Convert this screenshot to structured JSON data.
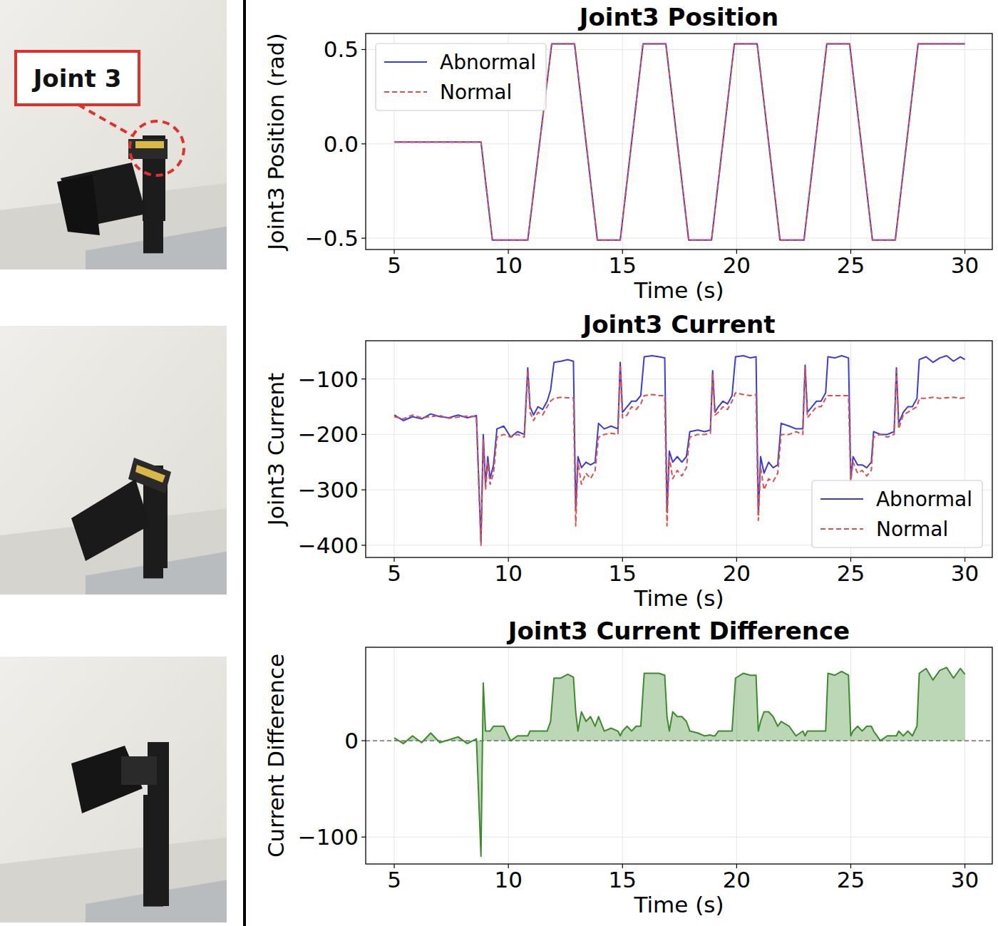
{
  "photo_panel": {
    "callout": "Joint 3"
  },
  "chart_data": [
    {
      "type": "line",
      "title": "Joint3 Position",
      "x_label": "Time (s)",
      "y_label": "Joint3 Position (rad)",
      "xlim": [
        3.75,
        31.2
      ],
      "ylim": [
        -0.56,
        0.585
      ],
      "xticks": [
        5,
        10,
        15,
        20,
        25,
        30
      ],
      "yticks": [
        {
          "value": -0.5,
          "label": "−0.5"
        },
        {
          "value": 0,
          "label": "0.0"
        },
        {
          "value": 0.5,
          "label": "0.5"
        }
      ],
      "grid": true,
      "legend": "upper left",
      "x": [
        5,
        8.8,
        9.3,
        10.85,
        11.9,
        12.9,
        13.9,
        14.9,
        15.9,
        16.9,
        17.9,
        18.9,
        19.9,
        20.9,
        21.9,
        22.95,
        23.95,
        24.95,
        25.95,
        26.95,
        27.95,
        30
      ],
      "series": [
        {
          "name": "Abnormal",
          "color": "#3b3bdc",
          "line_style": "solid",
          "values": [
            0.01,
            0.01,
            -0.51,
            -0.51,
            0.53,
            0.53,
            -0.51,
            -0.51,
            0.53,
            0.53,
            -0.51,
            -0.51,
            0.53,
            0.53,
            -0.51,
            -0.51,
            0.53,
            0.53,
            -0.51,
            -0.51,
            0.53,
            0.53
          ]
        },
        {
          "name": "Normal",
          "color": "#e0504a",
          "line_style": "dashed",
          "values": [
            0.01,
            0.01,
            -0.51,
            -0.51,
            0.53,
            0.53,
            -0.51,
            -0.51,
            0.53,
            0.53,
            -0.51,
            -0.51,
            0.53,
            0.53,
            -0.51,
            -0.51,
            0.53,
            0.53,
            -0.51,
            -0.51,
            0.53,
            0.53
          ]
        }
      ]
    },
    {
      "type": "line",
      "title": "Joint3 Current",
      "x_label": "Time (s)",
      "y_label": "Joint3 Current",
      "xlim": [
        3.75,
        31.2
      ],
      "ylim": [
        -422,
        -31
      ],
      "xticks": [
        5,
        10,
        15,
        20,
        25,
        30
      ],
      "yticks": [
        {
          "value": -400,
          "label": "−400"
        },
        {
          "value": -300,
          "label": "−300"
        },
        {
          "value": -200,
          "label": "−200"
        },
        {
          "value": -100,
          "label": "−100"
        }
      ],
      "grid": true,
      "legend": "lower right",
      "x": [
        5.0,
        5.4,
        5.8,
        6.2,
        6.6,
        7.0,
        7.4,
        7.8,
        8.2,
        8.6,
        8.8,
        8.9,
        9.0,
        9.1,
        9.2,
        9.35,
        9.5,
        9.8,
        10.1,
        10.4,
        10.7,
        10.85,
        10.95,
        11.1,
        11.3,
        11.5,
        11.7,
        11.85,
        12.0,
        12.3,
        12.6,
        12.85,
        12.95,
        13.05,
        13.2,
        13.4,
        13.6,
        13.8,
        13.95,
        14.2,
        14.5,
        14.8,
        14.9,
        15.0,
        15.2,
        15.4,
        15.6,
        15.8,
        15.95,
        16.3,
        16.6,
        16.85,
        16.95,
        17.05,
        17.2,
        17.4,
        17.6,
        17.8,
        17.95,
        18.3,
        18.6,
        18.85,
        18.95,
        19.05,
        19.2,
        19.4,
        19.6,
        19.8,
        19.95,
        20.3,
        20.6,
        20.85,
        20.95,
        21.05,
        21.2,
        21.4,
        21.6,
        21.8,
        21.95,
        22.3,
        22.6,
        22.9,
        23.0,
        23.1,
        23.3,
        23.5,
        23.7,
        23.9,
        24.0,
        24.3,
        24.6,
        24.9,
        25.0,
        25.1,
        25.3,
        25.5,
        25.7,
        25.9,
        26.0,
        26.3,
        26.6,
        26.9,
        27.0,
        27.1,
        27.3,
        27.5,
        27.7,
        27.9,
        28.0,
        28.3,
        28.6,
        28.9,
        29.2,
        29.5,
        29.8,
        30.0
      ],
      "series": [
        {
          "name": "Abnormal",
          "color": "#3b3bdc",
          "line_style": "solid",
          "values": [
            -165,
            -175,
            -168,
            -172,
            -163,
            -168,
            -170,
            -165,
            -170,
            -166,
            -395,
            -200,
            -290,
            -240,
            -280,
            -255,
            -190,
            -185,
            -205,
            -195,
            -200,
            -80,
            -150,
            -165,
            -150,
            -155,
            -140,
            -120,
            -70,
            -68,
            -65,
            -68,
            -335,
            -240,
            -260,
            -250,
            -255,
            -250,
            -180,
            -190,
            -185,
            -190,
            -70,
            -160,
            -150,
            -140,
            -140,
            -130,
            -60,
            -58,
            -60,
            -62,
            -340,
            -230,
            -250,
            -240,
            -250,
            -240,
            -195,
            -192,
            -195,
            -192,
            -85,
            -160,
            -150,
            -140,
            -145,
            -130,
            -60,
            -58,
            -62,
            -60,
            -345,
            -240,
            -270,
            -250,
            -260,
            -255,
            -180,
            -185,
            -190,
            -190,
            -75,
            -160,
            -150,
            -140,
            -140,
            -125,
            -60,
            -62,
            -58,
            -62,
            -280,
            -240,
            -255,
            -255,
            -260,
            -250,
            -195,
            -200,
            -200,
            -195,
            -80,
            -180,
            -160,
            -150,
            -150,
            -135,
            -65,
            -60,
            -70,
            -62,
            -58,
            -68,
            -60,
            -65
          ]
        },
        {
          "name": "Normal",
          "color": "#e0504a",
          "line_style": "dashed",
          "values": [
            -168,
            -172,
            -165,
            -170,
            -168,
            -166,
            -171,
            -169,
            -167,
            -168,
            -400,
            -210,
            -300,
            -250,
            -290,
            -270,
            -205,
            -200,
            -205,
            -200,
            -205,
            -85,
            -160,
            -175,
            -160,
            -165,
            -150,
            -140,
            -135,
            -133,
            -134,
            -134,
            -365,
            -250,
            -290,
            -270,
            -280,
            -265,
            -205,
            -200,
            -198,
            -200,
            -75,
            -170,
            -165,
            -150,
            -155,
            -145,
            -130,
            -128,
            -130,
            -130,
            -365,
            -240,
            -280,
            -265,
            -275,
            -260,
            -205,
            -200,
            -200,
            -198,
            -90,
            -165,
            -160,
            -150,
            -155,
            -140,
            -125,
            -128,
            -130,
            -128,
            -355,
            -260,
            -300,
            -280,
            -285,
            -270,
            -200,
            -200,
            -195,
            -200,
            -80,
            -170,
            -160,
            -150,
            -150,
            -135,
            -130,
            -130,
            -130,
            -130,
            -285,
            -250,
            -270,
            -265,
            -275,
            -265,
            -205,
            -200,
            -205,
            -200,
            -85,
            -190,
            -165,
            -160,
            -155,
            -150,
            -135,
            -135,
            -133,
            -135,
            -134,
            -133,
            -135,
            -134
          ]
        }
      ]
    },
    {
      "type": "area",
      "title": "Joint3 Current Difference",
      "x_label": "Time (s)",
      "y_label": "Current Difference",
      "xlim": [
        3.75,
        31.2
      ],
      "ylim": [
        -128,
        97
      ],
      "baseline": 0,
      "xticks": [
        5,
        10,
        15,
        20,
        25,
        30
      ],
      "yticks": [
        {
          "value": -100,
          "label": "−100"
        },
        0
      ],
      "grid": true,
      "x": [
        5.0,
        5.4,
        5.8,
        6.2,
        6.6,
        7.0,
        7.4,
        7.8,
        8.2,
        8.6,
        8.8,
        8.9,
        9.0,
        9.1,
        9.2,
        9.35,
        9.5,
        9.8,
        10.1,
        10.4,
        10.7,
        10.85,
        10.95,
        11.1,
        11.3,
        11.5,
        11.7,
        11.85,
        12.0,
        12.3,
        12.6,
        12.85,
        12.95,
        13.05,
        13.2,
        13.4,
        13.6,
        13.8,
        13.95,
        14.2,
        14.5,
        14.8,
        14.9,
        15.0,
        15.2,
        15.4,
        15.6,
        15.8,
        15.95,
        16.3,
        16.6,
        16.85,
        16.95,
        17.05,
        17.2,
        17.4,
        17.6,
        17.8,
        17.95,
        18.3,
        18.6,
        18.85,
        18.95,
        19.05,
        19.2,
        19.4,
        19.6,
        19.8,
        19.95,
        20.3,
        20.6,
        20.85,
        20.95,
        21.05,
        21.2,
        21.4,
        21.6,
        21.8,
        21.95,
        22.3,
        22.6,
        22.9,
        23.0,
        23.1,
        23.3,
        23.5,
        23.7,
        23.9,
        24.0,
        24.3,
        24.6,
        24.9,
        25.0,
        25.1,
        25.3,
        25.5,
        25.7,
        25.9,
        26.0,
        26.3,
        26.6,
        26.9,
        27.0,
        27.1,
        27.3,
        27.5,
        27.7,
        27.9,
        28.0,
        28.3,
        28.6,
        28.9,
        29.2,
        29.5,
        29.8,
        30.0
      ],
      "series": [
        {
          "name": "Current Difference",
          "color": "#3c8c2c",
          "line_style": "solid",
          "values": [
            3,
            -3,
            5,
            -2,
            8,
            -2,
            1,
            4,
            -3,
            2,
            -120,
            60,
            10,
            10,
            10,
            15,
            15,
            15,
            0,
            5,
            5,
            5,
            10,
            10,
            10,
            10,
            10,
            20,
            65,
            65,
            69,
            66,
            30,
            10,
            30,
            20,
            25,
            15,
            25,
            10,
            13,
            10,
            5,
            10,
            15,
            10,
            15,
            15,
            70,
            70,
            70,
            68,
            25,
            10,
            30,
            25,
            25,
            20,
            10,
            8,
            5,
            6,
            5,
            5,
            10,
            10,
            10,
            10,
            65,
            70,
            68,
            68,
            10,
            20,
            30,
            30,
            25,
            15,
            20,
            15,
            5,
            10,
            5,
            10,
            10,
            10,
            10,
            10,
            70,
            68,
            72,
            68,
            5,
            10,
            15,
            10,
            15,
            15,
            10,
            0,
            5,
            5,
            5,
            10,
            5,
            10,
            5,
            15,
            70,
            75,
            63,
            73,
            76,
            65,
            75,
            69
          ]
        }
      ]
    }
  ]
}
